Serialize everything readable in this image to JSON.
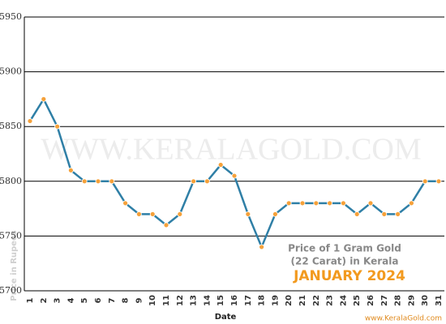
{
  "chart_data": {
    "type": "line",
    "categories": [
      "1",
      "2",
      "3",
      "4",
      "5",
      "6",
      "7",
      "8",
      "9",
      "10",
      "11",
      "12",
      "13",
      "14",
      "15",
      "16",
      "17",
      "18",
      "19",
      "20",
      "21",
      "22",
      "23",
      "24",
      "25",
      "26",
      "27",
      "28",
      "29",
      "30",
      "31"
    ],
    "series": [
      {
        "name": "Price of 1 Gram Gold (22 Carat) in Kerala",
        "color": "#2f7fa6",
        "values": [
          5855,
          5875,
          5850,
          5810,
          5800,
          5800,
          5800,
          5780,
          5770,
          5770,
          5760,
          5770,
          5800,
          5800,
          5815,
          5805,
          5770,
          5740,
          5770,
          5780,
          5780,
          5780,
          5780,
          5780,
          5770,
          5780,
          5770,
          5770,
          5780,
          5800,
          5800
        ]
      }
    ],
    "marker_color": "#f5a13a",
    "ylim": [
      5700,
      5950
    ],
    "yticks": [
      5700,
      5750,
      5800,
      5850,
      5900,
      5950
    ],
    "grid": true,
    "xlabel": "Date",
    "ylabel": "Price in Rupees",
    "watermark": "WWW.KERALAGOLD.COM",
    "annotation": {
      "line1": "Price of 1 Gram Gold",
      "line2": "(22 Carat) in Kerala",
      "period": "JANUARY 2024"
    },
    "credit": "www.KeralaGold.com"
  }
}
